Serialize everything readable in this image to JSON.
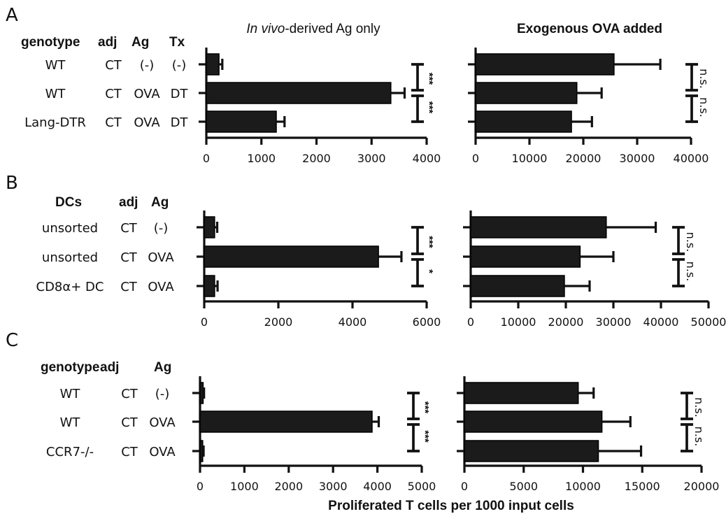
{
  "figure": {
    "xlabel": "Proliferated T cells per 1000 input cells",
    "titles": {
      "left_italic": "In vivo",
      "left_rest": "-derived Ag only",
      "right": "Exogenous OVA added"
    },
    "panels": [
      {
        "letter": "A",
        "headers": [
          "genotype",
          "adj",
          "Ag",
          "Tx"
        ],
        "rows": [
          [
            "WT",
            "CT",
            "(-)",
            "(-)"
          ],
          [
            "WT",
            "CT",
            "OVA",
            "DT"
          ],
          [
            "Lang-DTR",
            "CT",
            "OVA",
            "DT"
          ]
        ]
      },
      {
        "letter": "B",
        "headers": [
          "DCs",
          "adj",
          "Ag"
        ],
        "rows": [
          [
            "unsorted",
            "CT",
            "(-)"
          ],
          [
            "unsorted",
            "CT",
            "OVA"
          ],
          [
            "CD8α+ DC",
            "CT",
            "OVA"
          ]
        ]
      },
      {
        "letter": "C",
        "headers": [
          "genotype",
          "adj",
          "Ag"
        ],
        "rows": [
          [
            "WT",
            "CT",
            "(-)"
          ],
          [
            "WT",
            "CT",
            "OVA"
          ],
          [
            "CCR7-/-",
            "CT",
            "OVA"
          ]
        ]
      }
    ]
  },
  "chart_data": [
    {
      "type": "bar",
      "orientation": "horizontal",
      "panel": "A",
      "subplot": "In vivo-derived Ag only",
      "categories": [
        "WT CT (-) (-)",
        "WT CT OVA DT",
        "Lang-DTR CT OVA DT"
      ],
      "values": [
        230,
        3350,
        1270
      ],
      "errors": [
        60,
        250,
        150
      ],
      "xlim": [
        0,
        4000
      ],
      "xticks": [
        0,
        1000,
        2000,
        3000,
        4000
      ],
      "significance": [
        "***",
        "***"
      ]
    },
    {
      "type": "bar",
      "orientation": "horizontal",
      "panel": "A",
      "subplot": "Exogenous OVA added",
      "categories": [
        "WT CT (-) (-)",
        "WT CT OVA DT",
        "Lang-DTR CT OVA DT"
      ],
      "values": [
        25700,
        18800,
        17800
      ],
      "errors": [
        8600,
        4600,
        3800
      ],
      "xlim": [
        0,
        40000
      ],
      "xticks": [
        0,
        10000,
        20000,
        30000,
        40000
      ],
      "significance": [
        "n.s.",
        "n.s."
      ]
    },
    {
      "type": "bar",
      "orientation": "horizontal",
      "panel": "B",
      "subplot": "In vivo-derived Ag only",
      "categories": [
        "unsorted CT (-)",
        "unsorted CT OVA",
        "CD8α+ DC CT OVA"
      ],
      "values": [
        280,
        4700,
        280
      ],
      "errors": [
        70,
        620,
        80
      ],
      "xlim": [
        0,
        6000
      ],
      "xticks": [
        0,
        2000,
        4000,
        6000
      ],
      "significance": [
        "***",
        "*"
      ]
    },
    {
      "type": "bar",
      "orientation": "horizontal",
      "panel": "B",
      "subplot": "Exogenous OVA added",
      "categories": [
        "unsorted CT (-)",
        "unsorted CT OVA",
        "CD8α+ DC CT OVA"
      ],
      "values": [
        28500,
        23000,
        19700
      ],
      "errors": [
        10400,
        7000,
        5300
      ],
      "xlim": [
        0,
        50000
      ],
      "xticks": [
        0,
        10000,
        20000,
        30000,
        40000,
        50000
      ],
      "significance": [
        "n.s.",
        "n.s."
      ]
    },
    {
      "type": "bar",
      "orientation": "horizontal",
      "panel": "C",
      "subplot": "In vivo-derived Ag only",
      "categories": [
        "WT CT (-)",
        "WT CT OVA",
        "CCR7-/- CT OVA"
      ],
      "values": [
        70,
        3880,
        60
      ],
      "errors": [
        20,
        150,
        20
      ],
      "xlim": [
        0,
        5000
      ],
      "xticks": [
        0,
        1000,
        2000,
        3000,
        4000,
        5000
      ],
      "significance": [
        "***",
        "***"
      ]
    },
    {
      "type": "bar",
      "orientation": "horizontal",
      "panel": "C",
      "subplot": "Exogenous OVA added",
      "categories": [
        "WT CT (-)",
        "WT CT OVA",
        "CCR7-/- CT OVA"
      ],
      "values": [
        9600,
        11600,
        11300
      ],
      "errors": [
        1300,
        2400,
        3600
      ],
      "xlim": [
        0,
        20000
      ],
      "xticks": [
        0,
        5000,
        10000,
        15000,
        20000
      ],
      "significance": [
        "n.s.",
        "n.s."
      ]
    }
  ]
}
